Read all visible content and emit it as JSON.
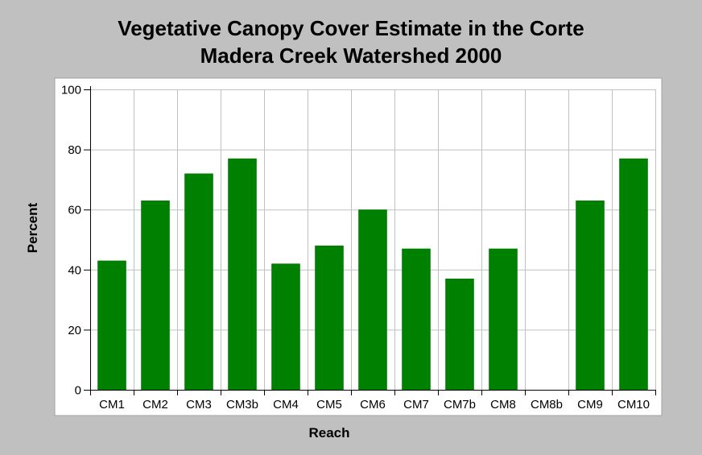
{
  "chart_data": {
    "type": "bar",
    "title": "Vegetative Canopy Cover Estimate in the Corte Madera Creek Watershed 2000",
    "title_lines": [
      "Vegetative Canopy Cover Estimate in the Corte",
      "Madera Creek Watershed 2000"
    ],
    "xlabel": "Reach",
    "ylabel": "Percent",
    "categories": [
      "CM1",
      "CM2",
      "CM3",
      "CM3b",
      "CM4",
      "CM5",
      "CM6",
      "CM7",
      "CM7b",
      "CM8",
      "CM8b",
      "CM9",
      "CM10"
    ],
    "values": [
      43,
      63,
      72,
      77,
      42,
      48,
      60,
      47,
      37,
      47,
      null,
      63,
      77
    ],
    "ylim": [
      0,
      100
    ],
    "yticks": [
      0,
      20,
      40,
      60,
      80,
      100
    ],
    "grid": true,
    "legend": "none",
    "colors": {
      "bar": "#008000",
      "background": "#c0c0c0",
      "plot_area": "#ffffff",
      "grid": "#c0c0c0"
    }
  }
}
